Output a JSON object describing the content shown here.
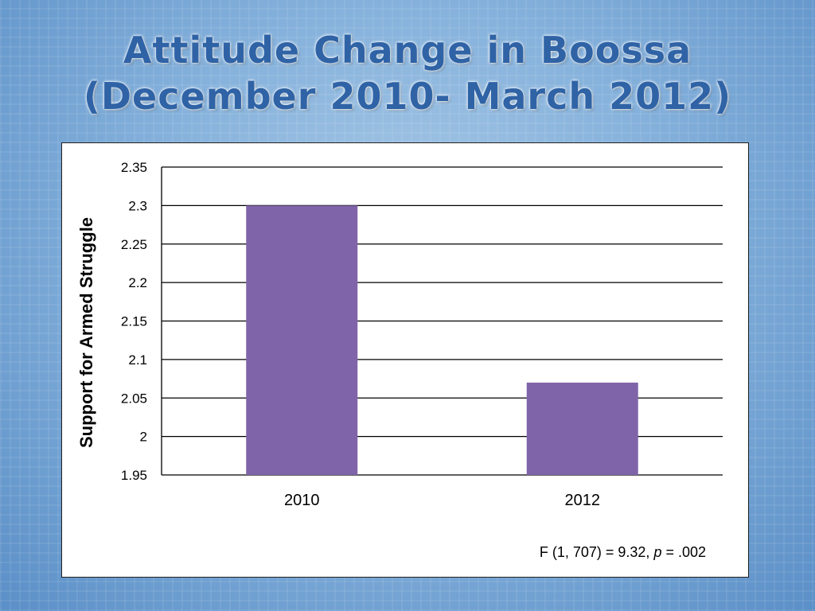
{
  "slide": {
    "title_line1": "Attitude Change in Boossa",
    "title_line2": "(December 2010- March 2012)"
  },
  "chart_data": {
    "type": "bar",
    "categories": [
      "2010",
      "2012"
    ],
    "values": [
      2.3,
      2.07
    ],
    "ylabel": "Support for Armed Struggle",
    "xlabel": "",
    "ylim": [
      1.95,
      2.35
    ],
    "yticks": [
      "2.35",
      "2.3",
      "2.25",
      "2.2",
      "2.15",
      "2.1",
      "2.05",
      "2",
      "1.95"
    ],
    "bar_color": "#8064a9",
    "grid": true,
    "annotation": {
      "prefix": "F (1, 707) = 9.32, ",
      "italic": "p",
      "suffix": " = .002"
    }
  }
}
